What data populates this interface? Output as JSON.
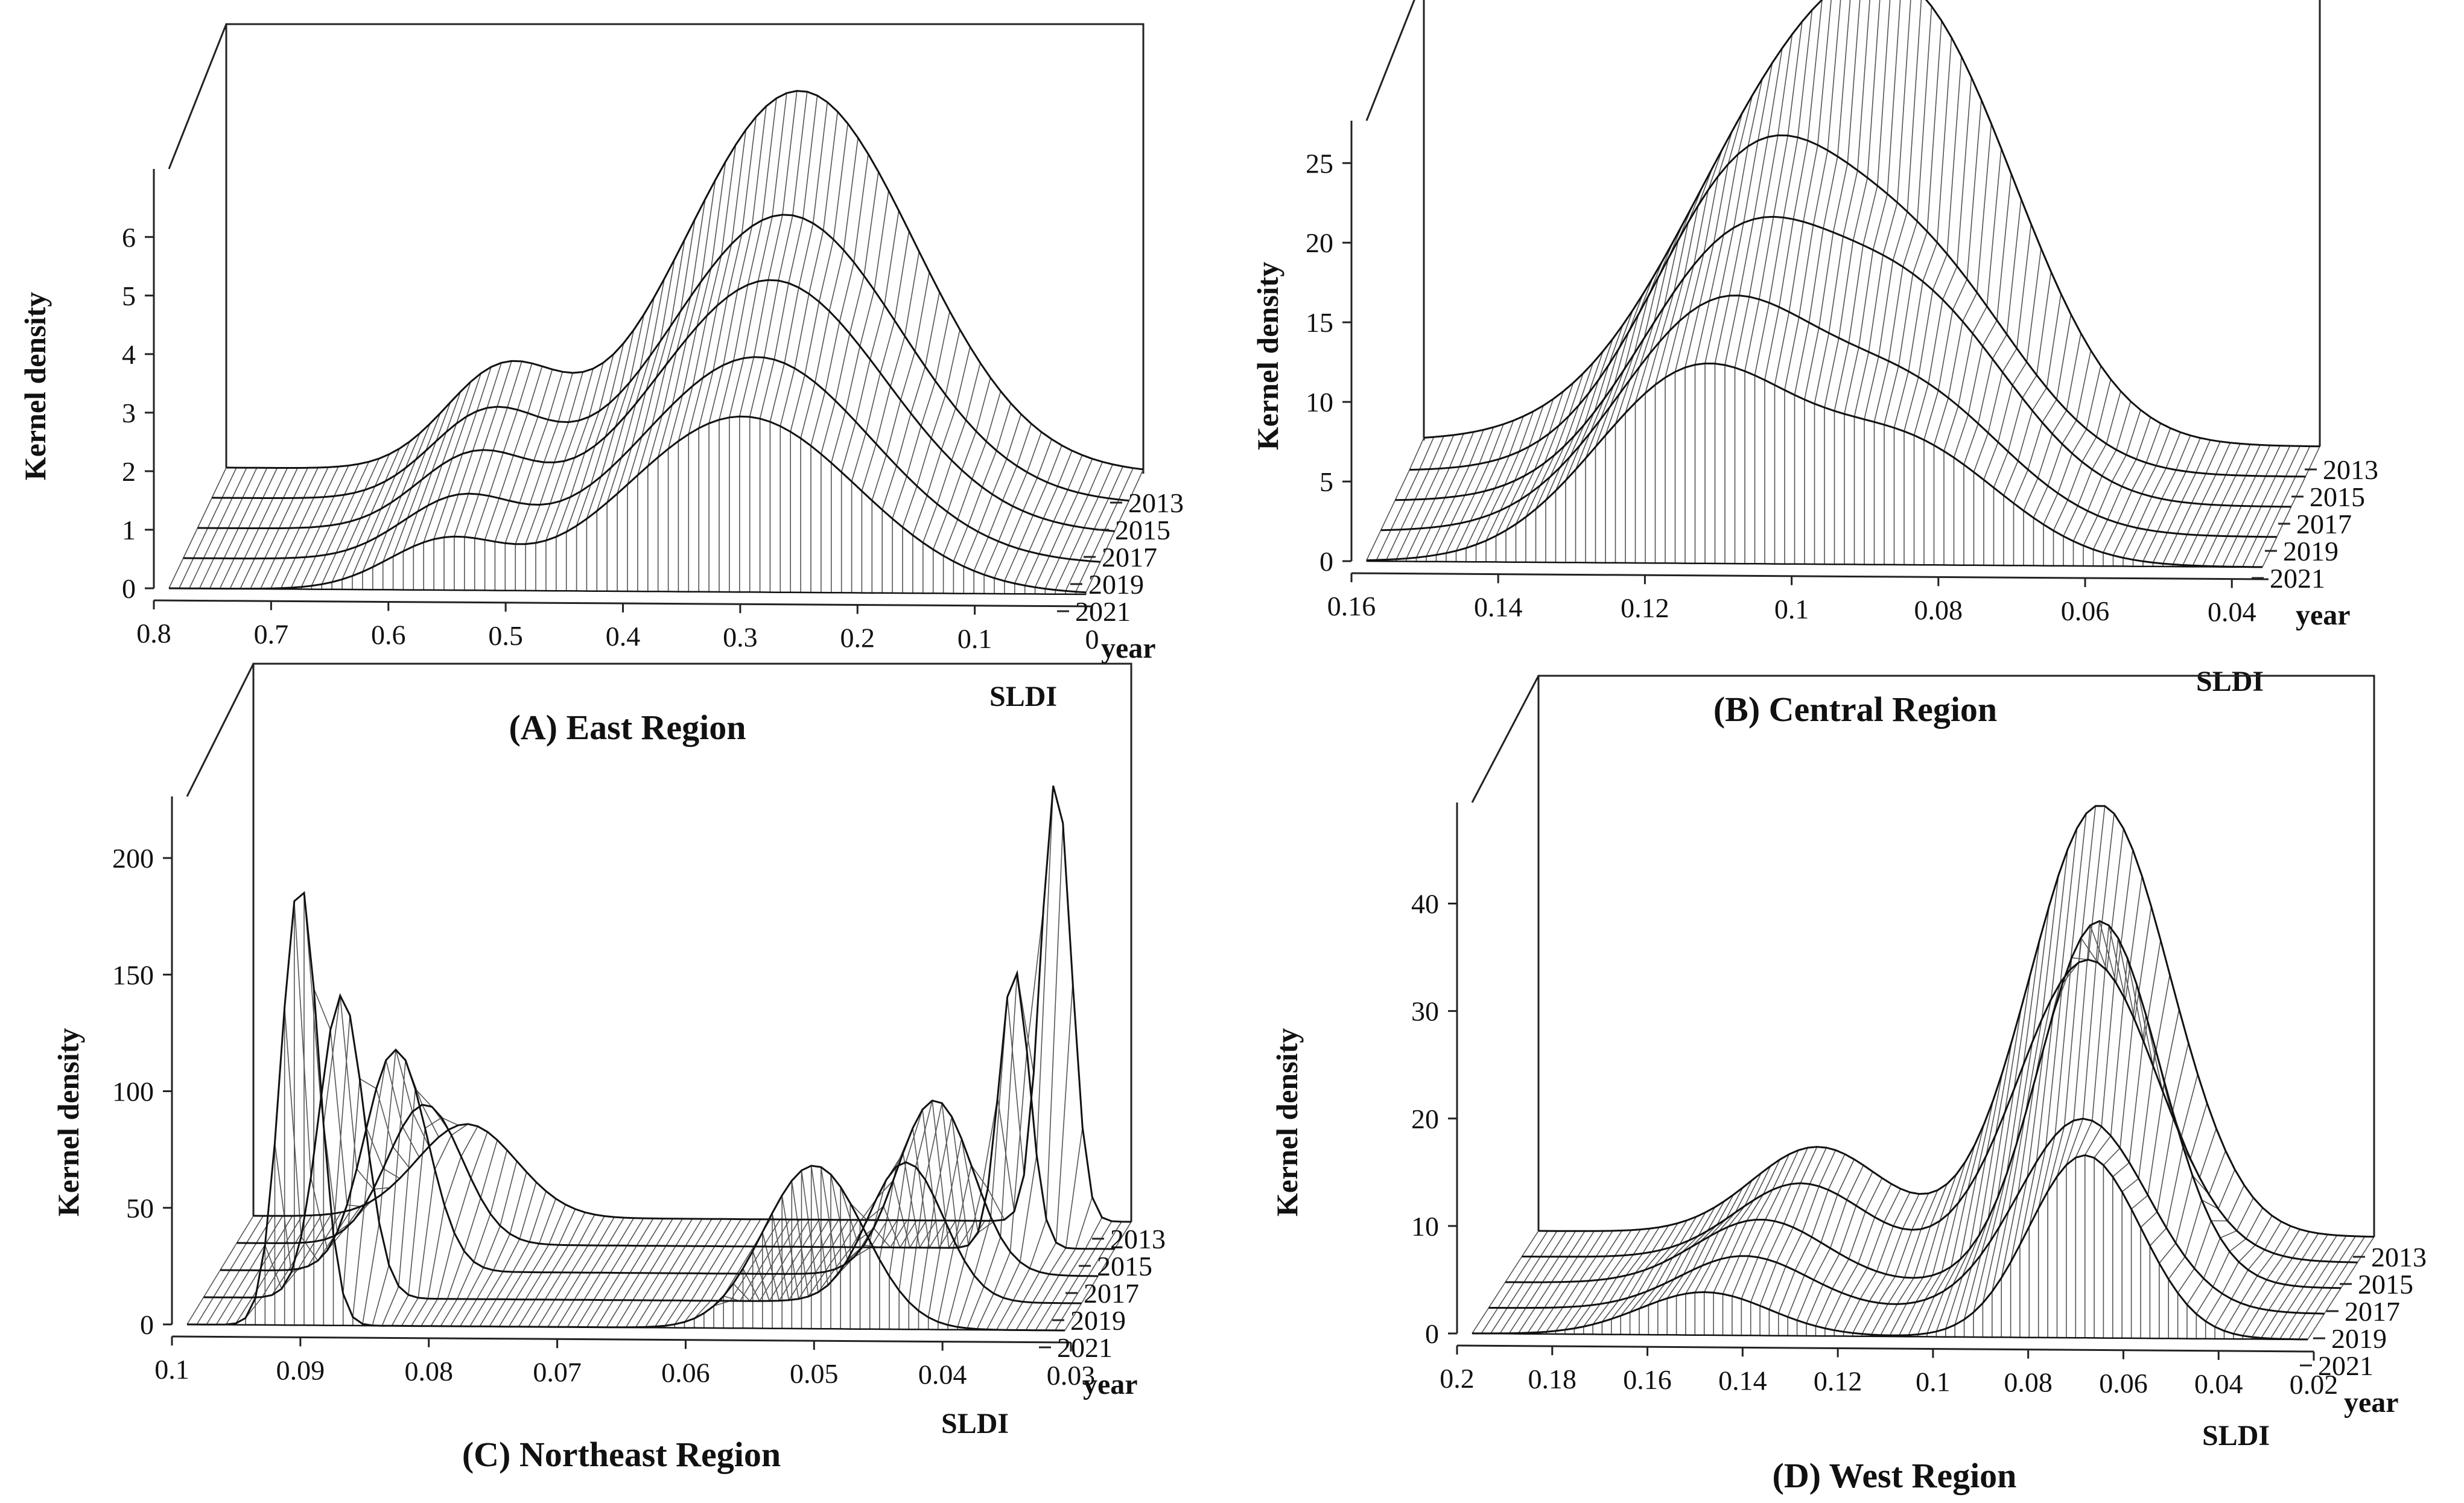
{
  "chart_data": [
    {
      "type": "surface",
      "title": "(A)  East Region",
      "xlabel": "SLDI",
      "ylabel": "Kernel density",
      "zlabel": "year",
      "x_range": [
        0.8,
        0
      ],
      "x_ticks": [
        "0.8",
        "0.7",
        "0.6",
        "0.5",
        "0.4",
        "0.3",
        "0.2",
        "0.1",
        "0"
      ],
      "y_range": [
        0,
        7
      ],
      "y_ticks": [
        "0",
        "1",
        "2",
        "3",
        "4",
        "5",
        "6"
      ],
      "year_ticks": [
        "2013",
        "2015",
        "2017",
        "2019",
        "2021"
      ],
      "series": [
        {
          "name": "2013",
          "peaks": [
            {
              "x": 0.3,
              "height": 6.5,
              "width": 0.1
            },
            {
              "x": 0.56,
              "height": 1.6,
              "width": 0.05
            }
          ]
        },
        {
          "name": "2015",
          "peaks": [
            {
              "x": 0.3,
              "height": 4.9,
              "width": 0.1
            },
            {
              "x": 0.56,
              "height": 1.4,
              "width": 0.05
            }
          ]
        },
        {
          "name": "2017",
          "peaks": [
            {
              "x": 0.3,
              "height": 4.3,
              "width": 0.1
            },
            {
              "x": 0.56,
              "height": 1.2,
              "width": 0.05
            }
          ]
        },
        {
          "name": "2019",
          "peaks": [
            {
              "x": 0.3,
              "height": 3.5,
              "width": 0.1
            },
            {
              "x": 0.56,
              "height": 1.0,
              "width": 0.05
            }
          ]
        },
        {
          "name": "2021",
          "peaks": [
            {
              "x": 0.3,
              "height": 3.0,
              "width": 0.1
            },
            {
              "x": 0.56,
              "height": 0.8,
              "width": 0.05
            }
          ]
        }
      ]
    },
    {
      "type": "surface",
      "title": "(B) Central Region",
      "xlabel": "SLDI",
      "ylabel": "Kernel density",
      "zlabel": "year",
      "x_range": [
        0.16,
        0.035
      ],
      "x_ticks": [
        "0.16",
        "0.14",
        "0.12",
        "0.1",
        "0.08",
        "0.06",
        "0.04"
      ],
      "y_range": [
        0,
        27
      ],
      "y_ticks": [
        "0",
        "5",
        "10",
        "15",
        "20",
        "25"
      ],
      "year_ticks": [
        "2013",
        "2015",
        "2017",
        "2019",
        "2021"
      ],
      "series": [
        {
          "name": "2013",
          "peaks": [
            {
              "x": 0.107,
              "height": 22,
              "width": 0.017
            },
            {
              "x": 0.087,
              "height": 15,
              "width": 0.013
            }
          ]
        },
        {
          "name": "2015",
          "peaks": [
            {
              "x": 0.112,
              "height": 19,
              "width": 0.014
            },
            {
              "x": 0.087,
              "height": 11,
              "width": 0.013
            }
          ]
        },
        {
          "name": "2017",
          "peaks": [
            {
              "x": 0.112,
              "height": 16,
              "width": 0.014
            },
            {
              "x": 0.086,
              "height": 11,
              "width": 0.013
            }
          ]
        },
        {
          "name": "2019",
          "peaks": [
            {
              "x": 0.113,
              "height": 14,
              "width": 0.014
            },
            {
              "x": 0.085,
              "height": 8,
              "width": 0.013
            }
          ]
        },
        {
          "name": "2021",
          "peaks": [
            {
              "x": 0.114,
              "height": 12,
              "width": 0.014
            },
            {
              "x": 0.084,
              "height": 7,
              "width": 0.013
            }
          ]
        }
      ]
    },
    {
      "type": "surface",
      "title": "(C)  Northeast Region",
      "xlabel": "SLDI",
      "ylabel": "Kernel density",
      "zlabel": "year",
      "x_range": [
        0.1,
        0.03
      ],
      "x_ticks": [
        "0.1",
        "0.09",
        "0.08",
        "0.07",
        "0.06",
        "0.05",
        "0.04",
        "0.03"
      ],
      "y_range": [
        0,
        220
      ],
      "y_ticks": [
        "0",
        "50",
        "100",
        "150",
        "200"
      ],
      "year_ticks": [
        "2013",
        "2015",
        "2017",
        "2019",
        "2021"
      ],
      "series": [
        {
          "name": "2013",
          "peaks": [
            {
              "x": 0.083,
              "height": 40,
              "width": 0.004
            },
            {
              "x": 0.036,
              "height": 190,
              "width": 0.0012
            }
          ]
        },
        {
          "name": "2015",
          "peaks": [
            {
              "x": 0.085,
              "height": 60,
              "width": 0.003
            },
            {
              "x": 0.038,
              "height": 120,
              "width": 0.0012
            }
          ]
        },
        {
          "name": "2017",
          "peaks": [
            {
              "x": 0.086,
              "height": 95,
              "width": 0.0025
            },
            {
              "x": 0.043,
              "height": 75,
              "width": 0.003
            }
          ]
        },
        {
          "name": "2019",
          "peaks": [
            {
              "x": 0.089,
              "height": 130,
              "width": 0.0018
            },
            {
              "x": 0.044,
              "height": 60,
              "width": 0.003
            }
          ]
        },
        {
          "name": "2021",
          "peaks": [
            {
              "x": 0.091,
              "height": 190,
              "width": 0.0015
            },
            {
              "x": 0.05,
              "height": 70,
              "width": 0.004
            }
          ]
        }
      ]
    },
    {
      "type": "surface",
      "title": "(D)  West Region",
      "xlabel": "SLDI",
      "ylabel": "Kernel density",
      "zlabel": "year",
      "x_range": [
        0.2,
        0.02
      ],
      "x_ticks": [
        "0.2",
        "0.18",
        "0.16",
        "0.14",
        "0.12",
        "0.1",
        "0.08",
        "0.06",
        "0.04",
        "0.02"
      ],
      "y_range": [
        0,
        48
      ],
      "y_ticks": [
        "0",
        "10",
        "20",
        "30",
        "40"
      ],
      "year_ticks": [
        "2013",
        "2015",
        "2017",
        "2019",
        "2021"
      ],
      "series": [
        {
          "name": "2013",
          "peaks": [
            {
              "x": 0.079,
              "height": 40,
              "width": 0.015
            },
            {
              "x": 0.14,
              "height": 8,
              "width": 0.014
            }
          ]
        },
        {
          "name": "2015",
          "peaks": [
            {
              "x": 0.078,
              "height": 28,
              "width": 0.015
            },
            {
              "x": 0.14,
              "height": 7,
              "width": 0.014
            }
          ]
        },
        {
          "name": "2017",
          "peaks": [
            {
              "x": 0.072,
              "height": 34,
              "width": 0.013
            },
            {
              "x": 0.145,
              "height": 6,
              "width": 0.014
            }
          ]
        },
        {
          "name": "2019",
          "peaks": [
            {
              "x": 0.072,
              "height": 18,
              "width": 0.014
            },
            {
              "x": 0.145,
              "height": 5,
              "width": 0.014
            }
          ]
        },
        {
          "name": "2021",
          "peaks": [
            {
              "x": 0.068,
              "height": 17,
              "width": 0.012
            },
            {
              "x": 0.15,
              "height": 4,
              "width": 0.014
            }
          ]
        }
      ]
    }
  ]
}
